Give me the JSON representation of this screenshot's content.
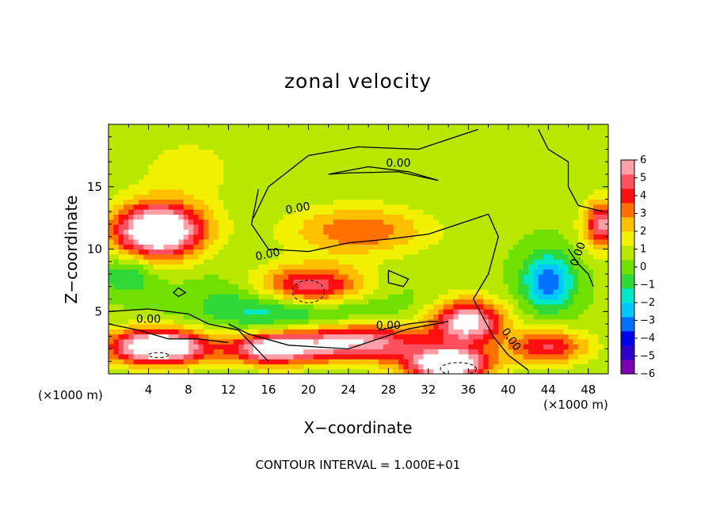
{
  "chart_data": {
    "type": "heatmap",
    "title": "zonal velocity",
    "xlabel": "X−coordinate",
    "ylabel": "Z−coordinate",
    "x_unit_label": "(×1000 m)",
    "y_unit_label": "(×1000 m)",
    "footnote": "CONTOUR INTERVAL = 1.000E+01",
    "xlim": [
      0,
      50
    ],
    "ylim": [
      0,
      20
    ],
    "x_ticks": [
      4,
      8,
      12,
      16,
      20,
      24,
      28,
      32,
      36,
      40,
      44,
      48
    ],
    "y_ticks": [
      5,
      10,
      15
    ],
    "colorbar": {
      "min": -6,
      "max": 6,
      "ticks": [
        6,
        5,
        4,
        3,
        2,
        1,
        0,
        -1,
        -2,
        -3,
        -4,
        -5,
        -6
      ],
      "colors": [
        "#7a00b0",
        "#2f00c8",
        "#0000ee",
        "#0070ff",
        "#00c8ff",
        "#00e8c8",
        "#30d838",
        "#70e000",
        "#b8e800",
        "#f0f000",
        "#ffc000",
        "#ff7000",
        "#ff1010",
        "#ff5060",
        "#ffa0a8"
      ],
      "out_of_range_color": "#ffffff"
    },
    "contour_labels": [
      "0.00",
      "0.00",
      "0.00",
      "0.00",
      "0.00",
      "0.00",
      "0.00",
      "0.00"
    ],
    "features": [
      {
        "x": 5,
        "z": 11.5,
        "rx": 4.5,
        "rz": 2.2,
        "value": 8
      },
      {
        "x": 2,
        "z": 8,
        "rx": 2.5,
        "rz": 1.5,
        "value": -2
      },
      {
        "x": 20,
        "z": 6.8,
        "rx": 6,
        "rz": 1.8,
        "value": 8
      },
      {
        "x": 19,
        "z": 5.8,
        "rx": 8,
        "rz": 2.2,
        "value": -5
      },
      {
        "x": 25,
        "z": 11.5,
        "rx": 7,
        "rz": 2,
        "value": 3
      },
      {
        "x": 24,
        "z": 2.6,
        "rx": 8,
        "rz": 1.6,
        "value": 6
      },
      {
        "x": 16,
        "z": 2.0,
        "rx": 4,
        "rz": 1.2,
        "value": 5
      },
      {
        "x": 36,
        "z": 4.2,
        "rx": 3.5,
        "rz": 1.8,
        "value": 6
      },
      {
        "x": 34,
        "z": 0.8,
        "rx": 4,
        "rz": 1.2,
        "value": 8
      },
      {
        "x": 5,
        "z": 2.2,
        "rx": 5,
        "rz": 1.4,
        "value": 8
      },
      {
        "x": 44,
        "z": 7.4,
        "rx": 2.5,
        "rz": 2.2,
        "value": -4
      },
      {
        "x": 44,
        "z": 2.2,
        "rx": 4,
        "rz": 1.4,
        "value": 4
      },
      {
        "x": 49.5,
        "z": 12,
        "rx": 2,
        "rz": 2,
        "value": 5
      },
      {
        "x": 8,
        "z": 16.5,
        "rx": 6,
        "rz": 3,
        "value": 1
      }
    ],
    "grid": false,
    "legend": "right"
  }
}
